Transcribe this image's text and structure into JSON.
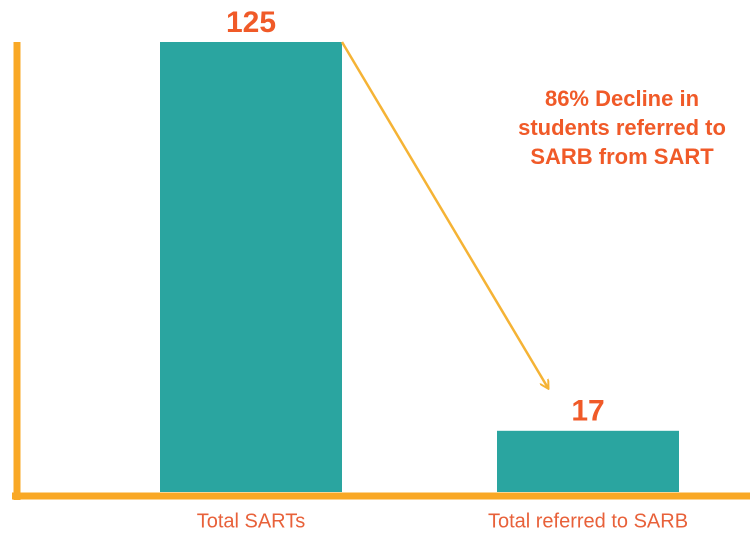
{
  "chart_data": {
    "type": "bar",
    "categories": [
      "Total SARTs",
      "Total referred to SARB"
    ],
    "values": [
      125,
      17
    ],
    "color": "#2aa5a0",
    "axis_color": "#f9a825",
    "ylim": [
      0,
      125
    ],
    "annotation": [
      "86% Decline in",
      "students referred to",
      "SARB from SART"
    ]
  }
}
